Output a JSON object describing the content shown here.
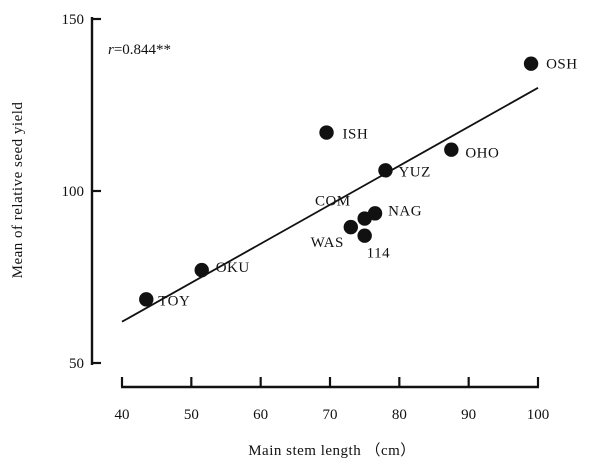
{
  "chart_data": {
    "type": "scatter",
    "xlabel": "Main stem length （cm）",
    "ylabel": "Mean of relative seed yield",
    "xlim": [
      40,
      100
    ],
    "ylim": [
      50,
      150
    ],
    "x_ticks": [
      40,
      50,
      60,
      70,
      80,
      90,
      100
    ],
    "y_ticks": [
      50,
      100,
      150
    ],
    "annotation": {
      "symbol": "r",
      "text": "=0.844**"
    },
    "trendline": {
      "x": [
        40,
        100
      ],
      "y": [
        62,
        130
      ]
    },
    "points": [
      {
        "label": "TOY",
        "x": 43.5,
        "y": 68.5
      },
      {
        "label": "OKU",
        "x": 51.5,
        "y": 77
      },
      {
        "label": "ISH",
        "x": 69.5,
        "y": 117
      },
      {
        "label": "COM",
        "x": 75,
        "y": 92
      },
      {
        "label": "WAS",
        "x": 73,
        "y": 89.5
      },
      {
        "label": "114",
        "x": 75,
        "y": 87
      },
      {
        "label": "NAG",
        "x": 76.5,
        "y": 93.5
      },
      {
        "label": "YUZ",
        "x": 78,
        "y": 106
      },
      {
        "label": "OHO",
        "x": 87.5,
        "y": 112
      },
      {
        "label": "OSH",
        "x": 99,
        "y": 137
      }
    ]
  }
}
